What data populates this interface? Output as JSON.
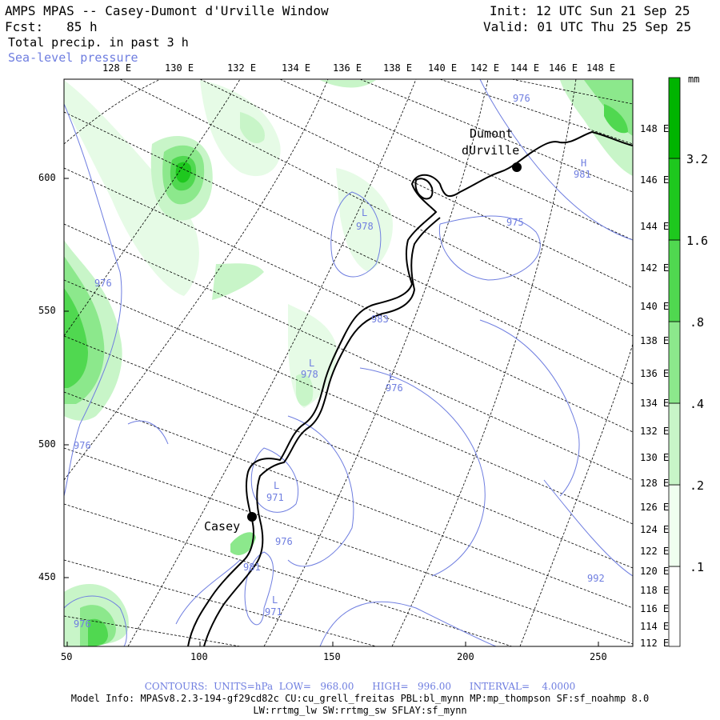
{
  "header": {
    "title": "AMPS MPAS -- Casey-Dumont d'Urville Window",
    "fcst_label": "Fcst:",
    "fcst_value": "85 h",
    "field_name": "Total precip. in past 3 h",
    "overlay_name": "Sea-level pressure",
    "init": "Init: 12 UTC Sun 21 Sep 25",
    "valid": "Valid: 01 UTC Thu 25 Sep 25"
  },
  "top_lon_labels": [
    "128 E",
    "130 E",
    "132 E",
    "134 E",
    "136 E",
    "138 E",
    "140 E",
    "142 E",
    "144 E",
    "146 E",
    "148 E"
  ],
  "right_lon_labels": [
    "148 E",
    "146 E",
    "144 E",
    "142 E",
    "140 E",
    "138 E",
    "136 E",
    "134 E",
    "132 E",
    "130 E",
    "128 E",
    "126 E",
    "124 E",
    "122 E",
    "120 E",
    "118 E",
    "116 E",
    "114 E",
    "112 E"
  ],
  "x_ticks": [
    "50",
    "100",
    "150",
    "200",
    "250"
  ],
  "y_ticks": [
    "600",
    "550",
    "500",
    "450"
  ],
  "colorbar": {
    "unit": "mm",
    "levels": [
      ".1",
      ".2",
      ".4",
      ".8",
      "1.6",
      "3.2"
    ],
    "colors": [
      "#ffffff",
      "#f0fff0",
      "#c8f5c8",
      "#8ce88c",
      "#50d850",
      "#1ec81e",
      "#00b400"
    ]
  },
  "stations": [
    {
      "name": "Casey",
      "lines": [
        "Casey"
      ]
    },
    {
      "name": "Dumont d'Urville",
      "lines": [
        "Dumont",
        "dUrville"
      ]
    }
  ],
  "pressure_labels": [
    {
      "text": "976"
    },
    {
      "text": "976"
    },
    {
      "text": "976"
    },
    {
      "text": "976"
    },
    {
      "text": "976"
    },
    {
      "text": "976"
    },
    {
      "text": "975"
    },
    {
      "text": "978"
    },
    {
      "text": "978"
    },
    {
      "text": "983"
    },
    {
      "text": "981"
    },
    {
      "text": "971"
    },
    {
      "text": "971"
    },
    {
      "text": "981"
    },
    {
      "text": "992"
    }
  ],
  "pressure_centers": [
    {
      "text": "L"
    },
    {
      "text": "L"
    },
    {
      "text": "L"
    },
    {
      "text": "L"
    },
    {
      "text": "L"
    },
    {
      "text": "H"
    }
  ],
  "footer": {
    "contours": "CONTOURS:  UNITS=hPa  LOW=   968.00      HIGH=   996.00      INTERVAL=    4.0000",
    "model_info": "Model Info: MPASv8.2.3-194-gf29cd82c CU:cu_grell_freitas PBL:bl_mynn MP:mp_thompson SF:sf_noahmp 8.0",
    "model_info2": "LW:rrtmg_lw SW:rrtmg_sw SFLAY:sf_mynn"
  }
}
